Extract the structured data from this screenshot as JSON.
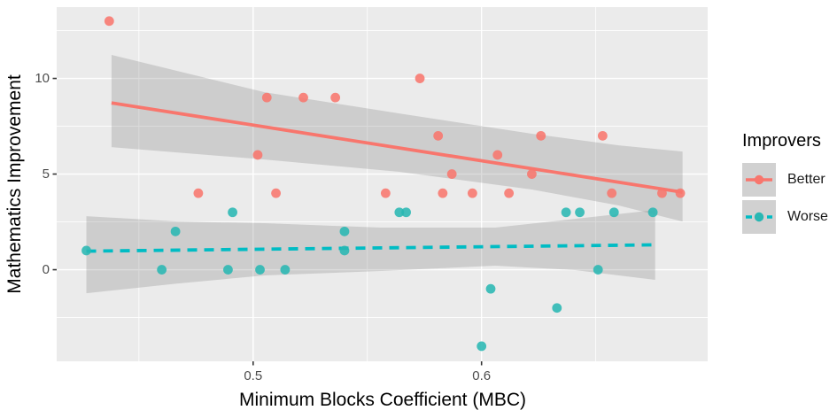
{
  "figure": {
    "background": "#FFFFFF",
    "panel_background": "#EBEBEB",
    "grid_color": "#FFFFFF",
    "tick_color": "#333333",
    "tick_label_color": "#4D4D4D",
    "axis_title_color": "#000000",
    "ribbon_color": "#808080",
    "ribbon_opacity": 0.28,
    "legend_key_background": "#D1D1D1"
  },
  "chart_data": {
    "type": "scatter",
    "title": "",
    "xlabel": "Minimum Blocks Coefficient (MBC)",
    "ylabel": "Mathematics Improvement",
    "xlim": [
      0.414,
      0.699
    ],
    "ylim": [
      -4.79,
      13.73
    ],
    "grid": true,
    "x_ticks": [
      {
        "value": 0.5,
        "label": "0.5"
      },
      {
        "value": 0.6,
        "label": "0.6"
      }
    ],
    "x_minor_ticks": [
      0.45,
      0.55,
      0.65
    ],
    "y_ticks": [
      {
        "value": 0,
        "label": "0"
      },
      {
        "value": 5,
        "label": "5"
      },
      {
        "value": 10,
        "label": "10"
      }
    ],
    "y_minor_ticks": [
      -2.5,
      2.5,
      7.5,
      12.5
    ],
    "legend": {
      "title": "Improvers",
      "position": "right"
    },
    "series": [
      {
        "name": "Better",
        "point_color": "#F8766D",
        "line_color": "#F8766D",
        "line_style": "solid",
        "points": [
          [
            0.437,
            13
          ],
          [
            0.506,
            9
          ],
          [
            0.522,
            9
          ],
          [
            0.536,
            9
          ],
          [
            0.573,
            10
          ],
          [
            0.502,
            6
          ],
          [
            0.476,
            4
          ],
          [
            0.51,
            4
          ],
          [
            0.558,
            4
          ],
          [
            0.581,
            7
          ],
          [
            0.587,
            5
          ],
          [
            0.583,
            4
          ],
          [
            0.596,
            4
          ],
          [
            0.607,
            6
          ],
          [
            0.612,
            4
          ],
          [
            0.622,
            5
          ],
          [
            0.626,
            7
          ],
          [
            0.653,
            7
          ],
          [
            0.657,
            4
          ],
          [
            0.679,
            4
          ],
          [
            0.687,
            4
          ]
        ],
        "trend_line": [
          [
            0.438,
            8.72
          ],
          [
            0.688,
            4.05
          ]
        ],
        "ci_upper": [
          [
            0.438,
            11.23
          ],
          [
            0.505,
            9.28
          ],
          [
            0.564,
            8.17
          ],
          [
            0.622,
            7.11
          ],
          [
            0.66,
            6.5
          ],
          [
            0.688,
            6.18
          ]
        ],
        "ci_lower": [
          [
            0.438,
            6.41
          ],
          [
            0.505,
            5.76
          ],
          [
            0.564,
            5.12
          ],
          [
            0.622,
            4.19
          ],
          [
            0.66,
            3.36
          ],
          [
            0.688,
            2.52
          ]
        ]
      },
      {
        "name": "Worse",
        "point_color": "#29B7B3",
        "line_color": "#00BCC4",
        "line_style": "dashed",
        "points": [
          [
            0.427,
            1
          ],
          [
            0.46,
            0
          ],
          [
            0.466,
            2
          ],
          [
            0.489,
            0
          ],
          [
            0.491,
            3
          ],
          [
            0.503,
            0
          ],
          [
            0.514,
            0
          ],
          [
            0.54,
            1
          ],
          [
            0.54,
            2
          ],
          [
            0.564,
            3
          ],
          [
            0.567,
            3
          ],
          [
            0.6,
            -4
          ],
          [
            0.604,
            -1
          ],
          [
            0.633,
            -2
          ],
          [
            0.637,
            3
          ],
          [
            0.643,
            3
          ],
          [
            0.651,
            0
          ],
          [
            0.658,
            3
          ],
          [
            0.675,
            3
          ]
        ],
        "trend_line": [
          [
            0.427,
            0.97
          ],
          [
            0.676,
            1.3
          ]
        ],
        "ci_upper": [
          [
            0.427,
            2.8
          ],
          [
            0.467,
            2.52
          ],
          [
            0.505,
            2.43
          ],
          [
            0.556,
            2.2
          ],
          [
            0.606,
            2.2
          ],
          [
            0.641,
            2.66
          ],
          [
            0.676,
            3.12
          ]
        ],
        "ci_lower": [
          [
            0.427,
            -1.23
          ],
          [
            0.467,
            -0.72
          ],
          [
            0.505,
            -0.3
          ],
          [
            0.556,
            -0.07
          ],
          [
            0.606,
            0.21
          ],
          [
            0.641,
            -0.02
          ],
          [
            0.676,
            -0.53
          ]
        ]
      }
    ]
  }
}
